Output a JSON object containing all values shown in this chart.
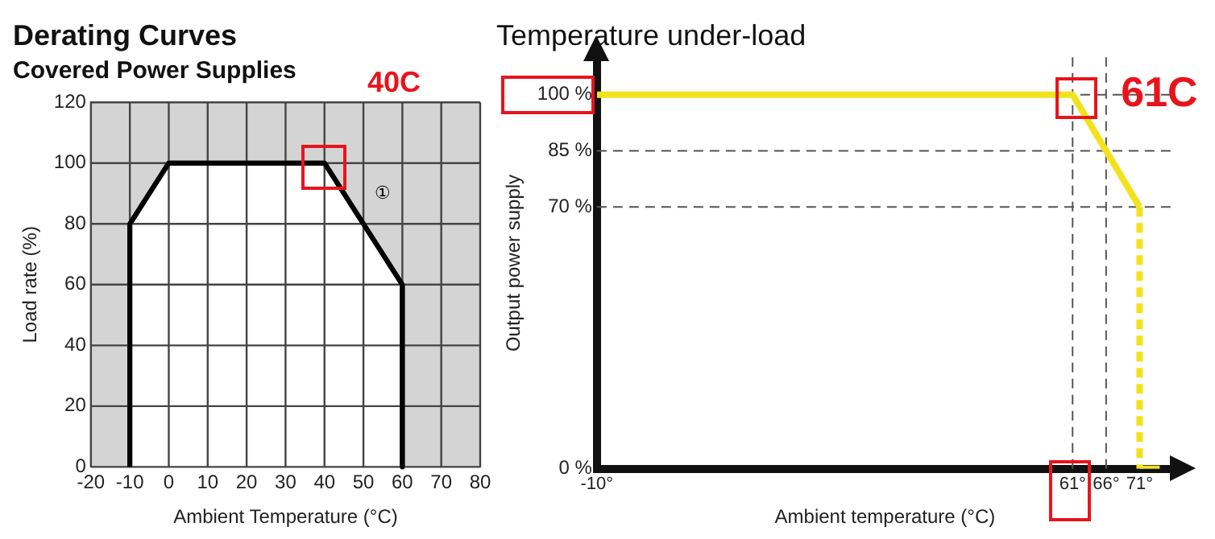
{
  "chart_data": [
    {
      "type": "line",
      "title": "Derating Curves",
      "subtitle": "Covered Power Supplies",
      "xlabel": "Ambient Temperature (°C)",
      "ylabel": "Load rate (%)",
      "annotations": [
        "40C",
        "①"
      ],
      "series": [
        {
          "color": "#000000",
          "x": [
            -10,
            -10,
            0,
            40,
            60,
            60
          ],
          "values": [
            0,
            80,
            100,
            100,
            60,
            0
          ]
        }
      ],
      "xlim": [
        -20,
        80
      ],
      "xticks": [
        -20,
        -10,
        0,
        10,
        20,
        30,
        40,
        50,
        60,
        70,
        80
      ],
      "ylim": [
        0,
        120
      ],
      "yticks": [
        0,
        20,
        40,
        60,
        80,
        100,
        120
      ],
      "grid": true
    },
    {
      "type": "line",
      "title": "Temperature under-load",
      "xlabel": "Ambient temperature (°C)",
      "ylabel": "Output power supply",
      "annotations": [
        {
          "text": "61C",
          "x": 61,
          "y": 100
        }
      ],
      "series": [
        {
          "color": "#f2e21c",
          "x": [
            -10,
            61,
            66,
            71
          ],
          "values": [
            100,
            100,
            85,
            70
          ]
        },
        {
          "color": "#f2e21c",
          "line_style": "dashed",
          "x": [
            71,
            71
          ],
          "values": [
            70,
            0
          ]
        },
        {
          "color": "#f2e21c",
          "x": [
            71,
            74
          ],
          "values": [
            0,
            0
          ]
        }
      ],
      "xlim": [
        -10,
        76
      ],
      "xticks": [
        {
          "value": -10,
          "label": "-10°"
        },
        {
          "value": 61,
          "label": "61°"
        },
        {
          "value": 66,
          "label": "66°"
        },
        {
          "value": 71,
          "label": "71°"
        }
      ],
      "ylim": [
        0,
        110
      ],
      "yticks": [
        {
          "value": 0,
          "label": "0 %"
        },
        {
          "value": 70,
          "label": "70 %"
        },
        {
          "value": 85,
          "label": "85 %"
        },
        {
          "value": 100,
          "label": "100 %"
        }
      ],
      "ref_lines": [
        {
          "axis": "y",
          "value": 100,
          "line_style": "dashed",
          "color": "#555555"
        },
        {
          "axis": "y",
          "value": 85,
          "line_style": "dashed",
          "color": "#555555"
        },
        {
          "axis": "y",
          "value": 70,
          "line_style": "dashed",
          "color": "#555555"
        },
        {
          "axis": "x",
          "value": 61,
          "line_style": "dashed",
          "color": "#555555"
        },
        {
          "axis": "x",
          "value": 66,
          "line_style": "dashed",
          "color": "#555555"
        }
      ]
    }
  ]
}
